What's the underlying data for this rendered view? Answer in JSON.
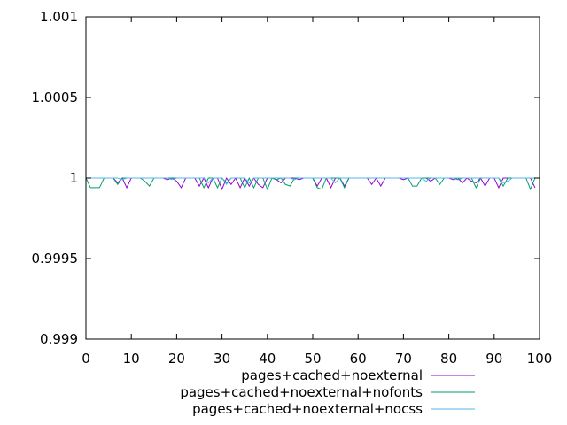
{
  "chart_data": {
    "type": "line",
    "title": "",
    "xlabel": "",
    "ylabel": "",
    "xlim": [
      0,
      100
    ],
    "ylim": [
      0.999,
      1.001
    ],
    "x_ticks": [
      0,
      10,
      20,
      30,
      40,
      50,
      60,
      70,
      80,
      90,
      100
    ],
    "y_ticks": [
      0.999,
      0.9995,
      1,
      1.0005,
      1.001
    ],
    "x_tick_labels": [
      "0",
      "10",
      "20",
      "30",
      "40",
      "50",
      "60",
      "70",
      "80",
      "90",
      "100"
    ],
    "y_tick_labels": [
      "0.999",
      "0.9995",
      "1",
      "1.0005",
      "1.001"
    ],
    "grid": false,
    "legend_position": "bottom-right",
    "series": [
      {
        "name": "pages+cached+noexternal",
        "color": "#9400d3",
        "x": [
          0,
          1,
          2,
          3,
          4,
          5,
          6,
          7,
          8,
          9,
          10,
          11,
          12,
          13,
          14,
          15,
          16,
          17,
          18,
          19,
          20,
          21,
          22,
          23,
          24,
          25,
          26,
          27,
          28,
          29,
          30,
          31,
          32,
          33,
          34,
          35,
          36,
          37,
          38,
          39,
          40,
          41,
          42,
          43,
          44,
          45,
          46,
          47,
          48,
          49,
          50,
          51,
          52,
          53,
          54,
          55,
          56,
          57,
          58,
          59,
          60,
          61,
          62,
          63,
          64,
          65,
          66,
          67,
          68,
          69,
          70,
          71,
          72,
          73,
          74,
          75,
          76,
          77,
          78,
          79,
          80,
          81,
          82,
          83,
          84,
          85,
          86,
          87,
          88,
          89,
          90,
          91,
          92,
          93,
          94,
          95,
          96,
          97,
          98,
          99
        ],
        "values": [
          1,
          1,
          1,
          1,
          1,
          1,
          1,
          0.99997,
          1,
          0.99994,
          1,
          1,
          1,
          1,
          1,
          1,
          1,
          1,
          0.99999,
          1,
          0.99998,
          0.99994,
          1,
          1,
          1,
          0.99995,
          1,
          0.99994,
          1,
          1,
          0.99993,
          1,
          0.99996,
          1,
          0.99994,
          1,
          0.99995,
          1,
          0.99996,
          0.99994,
          1,
          1,
          0.99999,
          0.99997,
          1,
          1,
          1,
          0.99999,
          1,
          1,
          1,
          0.99995,
          1,
          1,
          0.99994,
          1,
          1,
          0.99995,
          1,
          1,
          1,
          1,
          1,
          0.99996,
          1,
          0.99995,
          1,
          1,
          1,
          1,
          0.99999,
          1,
          1,
          1,
          1,
          1,
          0.99998,
          1,
          1,
          1,
          1,
          0.99999,
          1,
          0.99997,
          1,
          0.99998,
          0.99997,
          1,
          0.99995,
          1,
          1,
          0.99994,
          1,
          1,
          1,
          1,
          1,
          1,
          1,
          0.99994
        ]
      },
      {
        "name": "pages+cached+noexternal+nofonts",
        "color": "#009e73",
        "x": [
          0,
          1,
          2,
          3,
          4,
          5,
          6,
          7,
          8,
          9,
          10,
          11,
          12,
          13,
          14,
          15,
          16,
          17,
          18,
          19,
          20,
          21,
          22,
          23,
          24,
          25,
          26,
          27,
          28,
          29,
          30,
          31,
          32,
          33,
          34,
          35,
          36,
          37,
          38,
          39,
          40,
          41,
          42,
          43,
          44,
          45,
          46,
          47,
          48,
          49,
          50,
          51,
          52,
          53,
          54,
          55,
          56,
          57,
          58,
          59,
          60,
          61,
          62,
          63,
          64,
          65,
          66,
          67,
          68,
          69,
          70,
          71,
          72,
          73,
          74,
          75,
          76,
          77,
          78,
          79,
          80,
          81,
          82,
          83,
          84,
          85,
          86,
          87,
          88,
          89,
          90,
          91,
          92,
          93,
          94,
          95,
          96,
          97,
          98,
          99
        ],
        "values": [
          1,
          0.99994,
          0.99994,
          0.99994,
          1,
          1,
          1,
          0.99996,
          1,
          1,
          1,
          1,
          1,
          0.99998,
          0.99995,
          1,
          1,
          1,
          1,
          1,
          1,
          1,
          1,
          1,
          1,
          1,
          0.99994,
          1,
          1,
          0.99994,
          1,
          0.99997,
          1,
          1,
          1,
          0.99994,
          1,
          0.99994,
          1,
          1,
          0.99993,
          1,
          0.99999,
          1,
          0.99996,
          0.99995,
          1,
          1,
          1,
          1,
          1,
          0.99994,
          0.99993,
          1,
          1,
          1,
          1,
          0.99994,
          1,
          1,
          1,
          1,
          1,
          1,
          1,
          1,
          1,
          1,
          1,
          1,
          1,
          1,
          0.99995,
          0.99995,
          1,
          1,
          1,
          1,
          0.99996,
          1,
          1,
          1,
          0.99999,
          1,
          1,
          1,
          0.99994,
          1,
          1,
          1,
          1,
          1,
          0.99995,
          1,
          1,
          1,
          1,
          1,
          0.99993,
          1
        ]
      },
      {
        "name": "pages+cached+noexternal+nocss",
        "color": "#56b4e9",
        "x": [
          0,
          1,
          2,
          3,
          4,
          5,
          6,
          7,
          8,
          9,
          10,
          11,
          12,
          13,
          14,
          15,
          16,
          17,
          18,
          19,
          20,
          21,
          22,
          23,
          24,
          25,
          26,
          27,
          28,
          29,
          30,
          31,
          32,
          33,
          34,
          35,
          36,
          37,
          38,
          39,
          40,
          41,
          42,
          43,
          44,
          45,
          46,
          47,
          48,
          49,
          50,
          51,
          52,
          53,
          54,
          55,
          56,
          57,
          58,
          59,
          60,
          61,
          62,
          63,
          64,
          65,
          66,
          67,
          68,
          69,
          70,
          71,
          72,
          73,
          74,
          75,
          76,
          77,
          78,
          79,
          80,
          81,
          82,
          83,
          84,
          85,
          86,
          87,
          88,
          89,
          90,
          91,
          92,
          93,
          94,
          95,
          96,
          97,
          98,
          99
        ],
        "values": [
          1,
          1,
          1,
          1,
          1,
          1,
          1,
          1,
          0.99999,
          1,
          1,
          1,
          1,
          1,
          1,
          1,
          1,
          1,
          1,
          0.99999,
          1,
          1,
          1,
          1,
          1,
          1,
          1,
          0.99997,
          1,
          1,
          1,
          0.99996,
          1,
          1,
          1,
          1,
          0.99997,
          1,
          1,
          1,
          1,
          1,
          1,
          1,
          1,
          1,
          0.99999,
          1,
          1,
          1,
          1,
          1,
          1,
          1,
          1,
          0.99997,
          1,
          1,
          1,
          1,
          1,
          1,
          1,
          1,
          1,
          1,
          1,
          1,
          1,
          1,
          1,
          1,
          1,
          1,
          1,
          0.99998,
          1,
          1,
          1,
          1,
          1,
          1,
          1,
          1,
          1,
          1,
          1,
          1,
          1,
          1,
          1,
          1,
          0.99997,
          0.99998,
          1,
          1,
          1,
          1,
          1,
          1
        ]
      }
    ]
  }
}
